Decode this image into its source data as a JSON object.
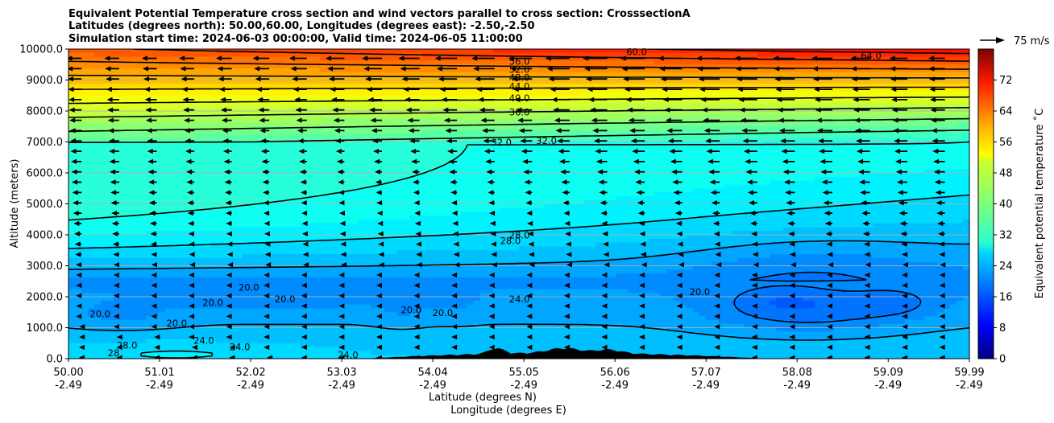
{
  "chart_data": {
    "type": "contour",
    "title_lines": [
      "Equivalent Potential Temperature cross section and wind vectors parallel to cross section: CrosssectionA",
      "Latitudes (degrees north): 50.00,60.00, Longitudes (degrees east): -2.50,-2.50",
      "Simulation start time: 2024-06-03 00:00:00, Valid time: 2024-06-05 11:00:00"
    ],
    "ylabel": "Altitude (meters)",
    "xlabel_lines": [
      "Latitude (degrees N)",
      "Longitude (degrees E)"
    ],
    "ylim": [
      0,
      10000
    ],
    "yticks": [
      "0.0",
      "1000.0",
      "2000.0",
      "3000.0",
      "4000.0",
      "5000.0",
      "6000.0",
      "7000.0",
      "8000.0",
      "9000.0",
      "10000.0"
    ],
    "xlim": [
      50.0,
      59.99
    ],
    "xticks": [
      {
        "lat": "50.00",
        "lon": "-2.49"
      },
      {
        "lat": "51.01",
        "lon": "-2.49"
      },
      {
        "lat": "52.02",
        "lon": "-2.49"
      },
      {
        "lat": "53.03",
        "lon": "-2.49"
      },
      {
        "lat": "54.04",
        "lon": "-2.49"
      },
      {
        "lat": "55.05",
        "lon": "-2.49"
      },
      {
        "lat": "56.06",
        "lon": "-2.49"
      },
      {
        "lat": "57.07",
        "lon": "-2.49"
      },
      {
        "lat": "58.08",
        "lon": "-2.49"
      },
      {
        "lat": "59.09",
        "lon": "-2.49"
      },
      {
        "lat": "59.99",
        "lon": "-2.49"
      }
    ],
    "grid": "horizontal",
    "colorbar": {
      "label": "Equivalent potential temperature ˚C",
      "range": [
        0,
        80
      ],
      "ticks": [
        "0",
        "8",
        "16",
        "24",
        "32",
        "40",
        "48",
        "56",
        "64",
        "72"
      ],
      "colormap": "jet"
    },
    "quiver_key": "75 m/s",
    "contour_labels": [
      {
        "text": "60.0",
        "lat": 56.3,
        "alt": 9900
      },
      {
        "text": "64.0",
        "lat": 58.9,
        "alt": 9770
      },
      {
        "text": "56.0",
        "lat": 55.0,
        "alt": 9580
      },
      {
        "text": "52.0",
        "lat": 55.0,
        "alt": 9330
      },
      {
        "text": "48.0",
        "lat": 55.0,
        "alt": 9070
      },
      {
        "text": "44.0",
        "lat": 55.0,
        "alt": 8780
      },
      {
        "text": "40.0",
        "lat": 55.0,
        "alt": 8400
      },
      {
        "text": "36.0",
        "lat": 55.0,
        "alt": 7950
      },
      {
        "text": "32.0",
        "lat": 55.3,
        "alt": 7030
      },
      {
        "text": "32.0",
        "lat": 54.8,
        "alt": 6980
      },
      {
        "text": "28.0",
        "lat": 55.0,
        "alt": 3970
      },
      {
        "text": "28.0",
        "lat": 54.9,
        "alt": 3790
      },
      {
        "text": "24.0",
        "lat": 55.0,
        "alt": 1910
      },
      {
        "text": "20.0",
        "lat": 52.0,
        "alt": 2290
      },
      {
        "text": "20.0",
        "lat": 52.4,
        "alt": 1910
      },
      {
        "text": "20.0",
        "lat": 51.6,
        "alt": 1790
      },
      {
        "text": "20.0",
        "lat": 51.2,
        "alt": 1130
      },
      {
        "text": "20.0",
        "lat": 50.35,
        "alt": 1430
      },
      {
        "text": "20.0",
        "lat": 53.8,
        "alt": 1560
      },
      {
        "text": "20.0",
        "lat": 54.15,
        "alt": 1470
      },
      {
        "text": "20.0",
        "lat": 57.0,
        "alt": 2140
      },
      {
        "text": "24.0",
        "lat": 51.5,
        "alt": 570
      },
      {
        "text": "24.0",
        "lat": 51.9,
        "alt": 360
      },
      {
        "text": "24.0",
        "lat": 53.1,
        "alt": 100
      },
      {
        "text": "28",
        "lat": 50.5,
        "alt": 170
      },
      {
        "text": "28.0",
        "lat": 50.65,
        "alt": 420
      }
    ]
  }
}
